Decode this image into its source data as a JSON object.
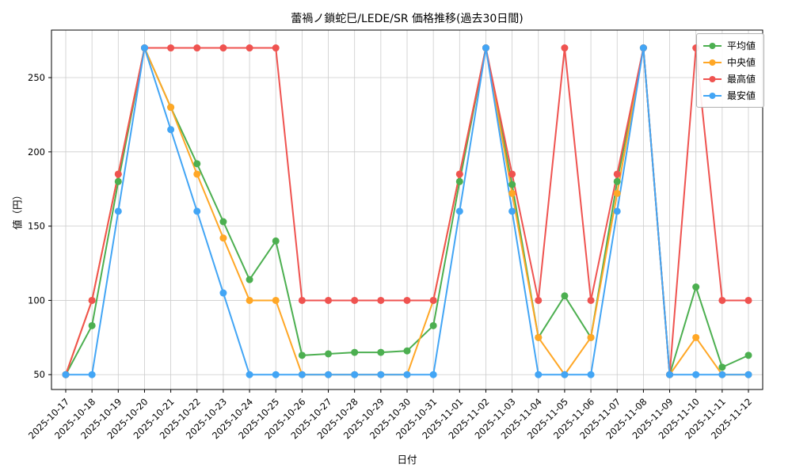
{
  "chart_data": {
    "type": "line",
    "title": "蕾禍ノ鎖蛇巳/LEDE/SR 価格推移(過去30日間)",
    "xlabel": "日付",
    "ylabel": "値（円）",
    "grid": true,
    "legend_position": "upper right",
    "ylim": [
      40,
      282
    ],
    "yticks": [
      50,
      100,
      150,
      200,
      250
    ],
    "x": [
      "2025-10-17",
      "2025-10-18",
      "2025-10-19",
      "2025-10-20",
      "2025-10-21",
      "2025-10-22",
      "2025-10-23",
      "2025-10-24",
      "2025-10-25",
      "2025-10-26",
      "2025-10-27",
      "2025-10-28",
      "2025-10-29",
      "2025-10-30",
      "2025-10-31",
      "2025-11-01",
      "2025-11-02",
      "2025-11-03",
      "2025-11-04",
      "2025-11-05",
      "2025-11-06",
      "2025-11-07",
      "2025-11-08",
      "2025-11-09",
      "2025-11-10",
      "2025-11-11",
      "2025-11-12"
    ],
    "series": [
      {
        "key": "average",
        "name": "平均値",
        "color": "#4caf50",
        "values": [
          50,
          83,
          180,
          270,
          230,
          192,
          153,
          114,
          140,
          63,
          64,
          65,
          65,
          66,
          83,
          180,
          270,
          178,
          75,
          103,
          75,
          180,
          270,
          50,
          109,
          55,
          63
        ]
      },
      {
        "key": "median",
        "name": "中央値",
        "color": "#ffa726",
        "values": [
          50,
          100,
          185,
          270,
          230,
          185,
          142,
          100,
          100,
          50,
          50,
          50,
          50,
          50,
          100,
          185,
          270,
          172,
          75,
          50,
          75,
          172,
          270,
          50,
          75,
          50,
          50
        ]
      },
      {
        "key": "max",
        "name": "最高値",
        "color": "#ef5350",
        "values": [
          50,
          100,
          185,
          270,
          270,
          270,
          270,
          270,
          270,
          100,
          100,
          100,
          100,
          100,
          100,
          185,
          270,
          185,
          100,
          270,
          100,
          185,
          270,
          50,
          270,
          100,
          100
        ]
      },
      {
        "key": "min",
        "name": "最安値",
        "color": "#42a5f5",
        "values": [
          50,
          50,
          160,
          270,
          215,
          160,
          105,
          50,
          50,
          50,
          50,
          50,
          50,
          50,
          50,
          160,
          270,
          160,
          50,
          50,
          50,
          160,
          270,
          50,
          50,
          50,
          50
        ]
      }
    ]
  }
}
